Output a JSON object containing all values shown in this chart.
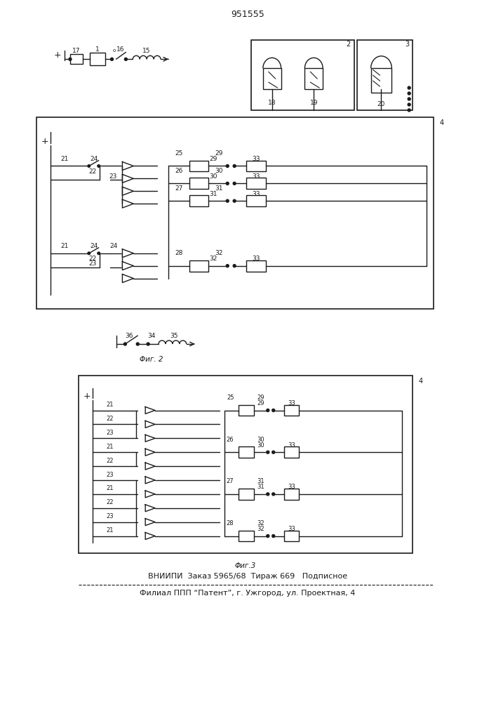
{
  "title": "951555",
  "footer_line1": "ВНИИПИ  Заказ 5965/68  Тираж 669   Подписное",
  "footer_line2": "Филиал ППП “Патент”, г. Ужгород, ул. Проектная, 4",
  "fig2_label": "Φиг. 2",
  "fig3_label": "Φиг.3",
  "bg_color": "#ffffff",
  "line_color": "#1a1a1a",
  "line_width": 1.0
}
